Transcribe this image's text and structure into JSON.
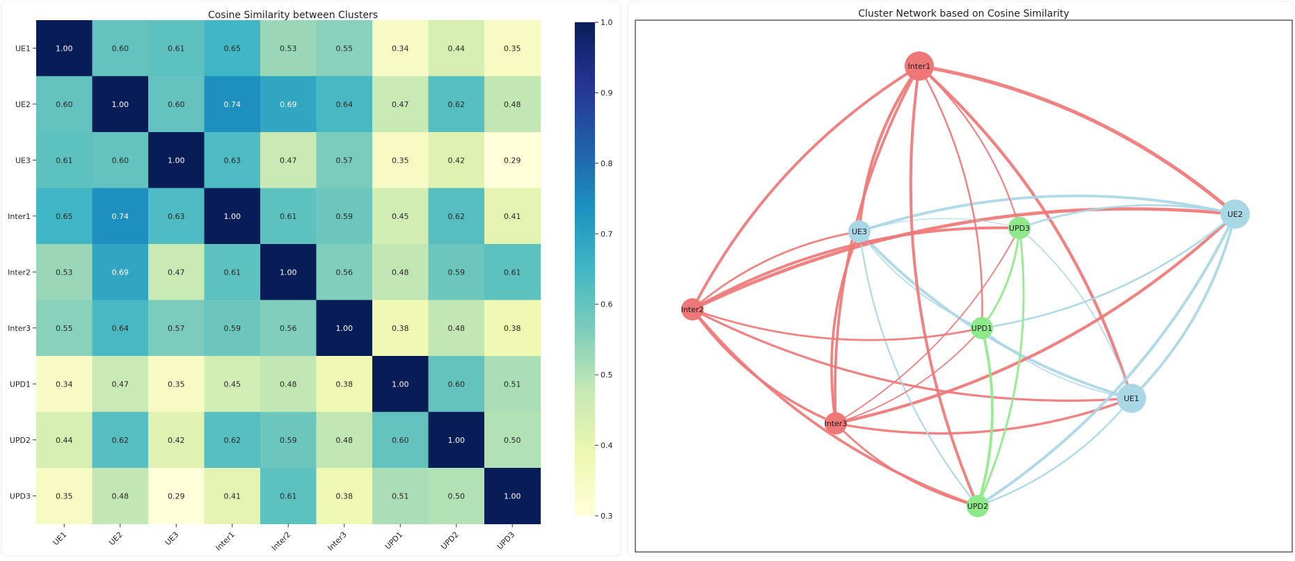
{
  "chart_data": [
    {
      "type": "heatmap",
      "title": "Cosine Similarity between Clusters",
      "row_labels": [
        "UE1",
        "UE2",
        "UE3",
        "Inter1",
        "Inter2",
        "Inter3",
        "UPD1",
        "UPD2",
        "UPD3"
      ],
      "col_labels": [
        "UE1",
        "UE2",
        "UE3",
        "Inter1",
        "Inter2",
        "Inter3",
        "UPD1",
        "UPD2",
        "UPD3"
      ],
      "values": [
        [
          1.0,
          0.6,
          0.61,
          0.65,
          0.53,
          0.55,
          0.34,
          0.44,
          0.35
        ],
        [
          0.6,
          1.0,
          0.6,
          0.74,
          0.69,
          0.64,
          0.47,
          0.62,
          0.48
        ],
        [
          0.61,
          0.6,
          1.0,
          0.63,
          0.47,
          0.57,
          0.35,
          0.42,
          0.29
        ],
        [
          0.65,
          0.74,
          0.63,
          1.0,
          0.61,
          0.59,
          0.45,
          0.62,
          0.41
        ],
        [
          0.53,
          0.69,
          0.47,
          0.61,
          1.0,
          0.56,
          0.48,
          0.59,
          0.61
        ],
        [
          0.55,
          0.64,
          0.57,
          0.59,
          0.56,
          1.0,
          0.38,
          0.48,
          0.38
        ],
        [
          0.34,
          0.47,
          0.35,
          0.45,
          0.48,
          0.38,
          1.0,
          0.6,
          0.51
        ],
        [
          0.44,
          0.62,
          0.42,
          0.62,
          0.59,
          0.48,
          0.6,
          1.0,
          0.5
        ],
        [
          0.35,
          0.48,
          0.29,
          0.41,
          0.61,
          0.38,
          0.51,
          0.5,
          1.0
        ]
      ],
      "colormap": "YlGnBu",
      "colorbar_range": [
        0.3,
        1.0
      ],
      "colorbar_ticks": [
        "0.3",
        "0.4",
        "0.5",
        "0.6",
        "0.7",
        "0.8",
        "0.9",
        "1.0"
      ]
    },
    {
      "type": "network",
      "title": "Cluster Network based on Cosine Similarity",
      "nodes": [
        {
          "id": "Inter1",
          "group": "Inter",
          "degree": 8
        },
        {
          "id": "UE2",
          "group": "UE",
          "degree": 8
        },
        {
          "id": "UE3",
          "group": "UE",
          "degree": 8
        },
        {
          "id": "UPD3",
          "group": "UPD",
          "degree": 8
        },
        {
          "id": "Inter2",
          "group": "Inter",
          "degree": 8
        },
        {
          "id": "UPD1",
          "group": "UPD",
          "degree": 8
        },
        {
          "id": "UE1",
          "group": "UE",
          "degree": 8
        },
        {
          "id": "Inter3",
          "group": "Inter",
          "degree": 8
        },
        {
          "id": "UPD2",
          "group": "UPD",
          "degree": 8
        }
      ],
      "group_colors": {
        "Inter": "#ef7777",
        "UE": "#a9d7e6",
        "UPD": "#8fe98a"
      }
    }
  ]
}
